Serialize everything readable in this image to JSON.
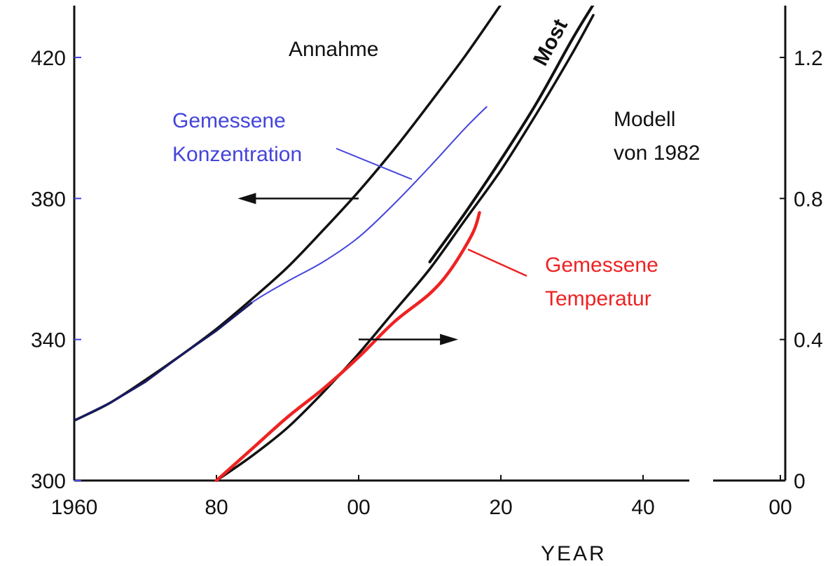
{
  "chart_data": {
    "type": "line",
    "title": "",
    "xlabel": "YEAR",
    "ylabel": "",
    "y2label": "",
    "xlim": [
      1960,
      2100
    ],
    "ylim": [
      300,
      435
    ],
    "y2lim": [
      0,
      1.35
    ],
    "grid": false,
    "x_ticks": [
      {
        "value": 1960,
        "label": "1960"
      },
      {
        "value": 1980,
        "label": "80"
      },
      {
        "value": 2000,
        "label": "00"
      },
      {
        "value": 2020,
        "label": "20"
      },
      {
        "value": 2040,
        "label": "40"
      },
      {
        "value": 2100,
        "label": "00"
      }
    ],
    "y_left_ticks": [
      {
        "value": 300,
        "label": "300"
      },
      {
        "value": 340,
        "label": "340"
      },
      {
        "value": 380,
        "label": "380"
      },
      {
        "value": 420,
        "label": "420"
      }
    ],
    "y_right_ticks": [
      {
        "value": 0,
        "label": "0"
      },
      {
        "value": 0.4,
        "label": "0.4"
      },
      {
        "value": 0.8,
        "label": "0.8"
      },
      {
        "value": 1.2,
        "label": "1.2"
      }
    ],
    "series": [
      {
        "key": "model_co2",
        "axis": "left",
        "color": "#111111",
        "x": [
          1960,
          1965,
          1970,
          1975,
          1980,
          1985,
          1990,
          1995,
          2000,
          2005,
          2010,
          2015,
          2020,
          2025,
          2028
        ],
        "y": [
          317,
          322,
          328.5,
          335.5,
          343,
          351.5,
          360.5,
          371,
          382,
          394,
          407,
          420.5,
          435,
          450,
          460
        ]
      },
      {
        "key": "measured_co2",
        "axis": "left",
        "color": "#4444dd",
        "x": [
          1960,
          1965,
          1970,
          1975,
          1980,
          1985,
          1990,
          1995,
          2000,
          2005,
          2010,
          2015,
          2018
        ],
        "y": [
          317,
          322,
          328,
          335.5,
          342.5,
          350.5,
          356.5,
          362,
          369,
          378.5,
          389,
          400,
          406
        ]
      },
      {
        "key": "model_temp",
        "axis": "right",
        "color": "#111111",
        "x": [
          1980,
          1985,
          1990,
          1995,
          2000,
          2005,
          2010,
          2015,
          2020,
          2025,
          2030,
          2033
        ],
        "y": [
          0,
          0.07,
          0.15,
          0.25,
          0.36,
          0.48,
          0.6,
          0.74,
          0.88,
          1.04,
          1.21,
          1.32
        ]
      },
      {
        "key": "most_line",
        "axis": "right",
        "color": "#111111",
        "x": [
          2010,
          2015,
          2020,
          2025,
          2030,
          2033
        ],
        "y": [
          0.62,
          0.76,
          0.91,
          1.07,
          1.25,
          1.35
        ]
      },
      {
        "key": "measured_temp",
        "axis": "right",
        "color": "#ee2222",
        "x": [
          1980,
          1985,
          1990,
          1995,
          2000,
          2005,
          2010,
          2013,
          2016,
          2017
        ],
        "y": [
          0,
          0.09,
          0.18,
          0.26,
          0.35,
          0.45,
          0.53,
          0.6,
          0.7,
          0.76
        ]
      }
    ],
    "annotations": {
      "annahme": "Annahme",
      "most": "Most",
      "modell_line1": "Modell",
      "modell_line2": "von 1982",
      "co2_line1": "Gemessene",
      "co2_line2": "Konzentration",
      "temp_line1": "Gemessene",
      "temp_line2": "Temperatur"
    },
    "arrows": [
      {
        "key": "to_left_axis",
        "from_x": 2000,
        "to_x": 1983,
        "y": 380,
        "axis": "left"
      },
      {
        "key": "to_right_axis",
        "from_x": 2000,
        "to_x": 2014,
        "y": 340,
        "axis": "left"
      }
    ]
  }
}
